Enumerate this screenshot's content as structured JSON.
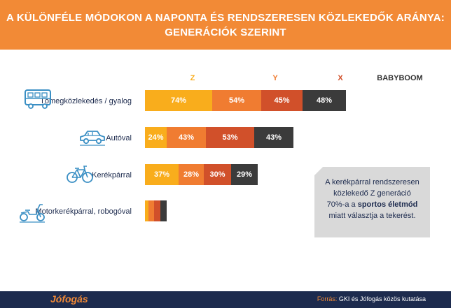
{
  "header": {
    "title_line1": "A KÜLÖNFÉLE MÓDOKON A NAPONTA ÉS RENDSZERESEN KÖZLEKEDŐK ARÁNYA:",
    "title_line2": "GENERÁCIÓK SZERINT"
  },
  "colors": {
    "header_bg": "#f28a36",
    "Z": "#f9ad1c",
    "Y": "#f07c31",
    "X": "#d1502a",
    "BABYBOOM": "#3b3b3b",
    "footer_bg": "#1d2b4e",
    "note_bg": "#d9d9d9"
  },
  "chart_data": {
    "type": "bar",
    "orientation": "horizontal",
    "stacked": true,
    "categories": [
      "Tömegközlekedés / gyalog",
      "Autóval",
      "Kerékpárral",
      "Motorkerékpárral, robogóval"
    ],
    "series": [
      {
        "name": "Z",
        "values": [
          74,
          24,
          37,
          4
        ]
      },
      {
        "name": "Y",
        "values": [
          54,
          43,
          28,
          6
        ]
      },
      {
        "name": "X",
        "values": [
          45,
          53,
          30,
          7
        ]
      },
      {
        "name": "BABYBOOM",
        "values": [
          48,
          43,
          29,
          7
        ]
      }
    ],
    "unit": "%",
    "label_values": [
      true,
      true,
      true,
      false
    ],
    "legend": "top"
  },
  "icons": [
    "bus-icon",
    "car-icon",
    "bicycle-icon",
    "scooter-icon"
  ],
  "note": {
    "line1": "A kerékpárral rendszeresen",
    "line2": "közlekedő Z generáció",
    "line3_pre": "70%-a a ",
    "line3_bold": "sportos életmód",
    "line4": "miatt választja a tekerést."
  },
  "footer": {
    "logo": "Jófogás",
    "source_label": "Forrás:",
    "source_text": " GKI és Jófogás közös kutatása"
  }
}
